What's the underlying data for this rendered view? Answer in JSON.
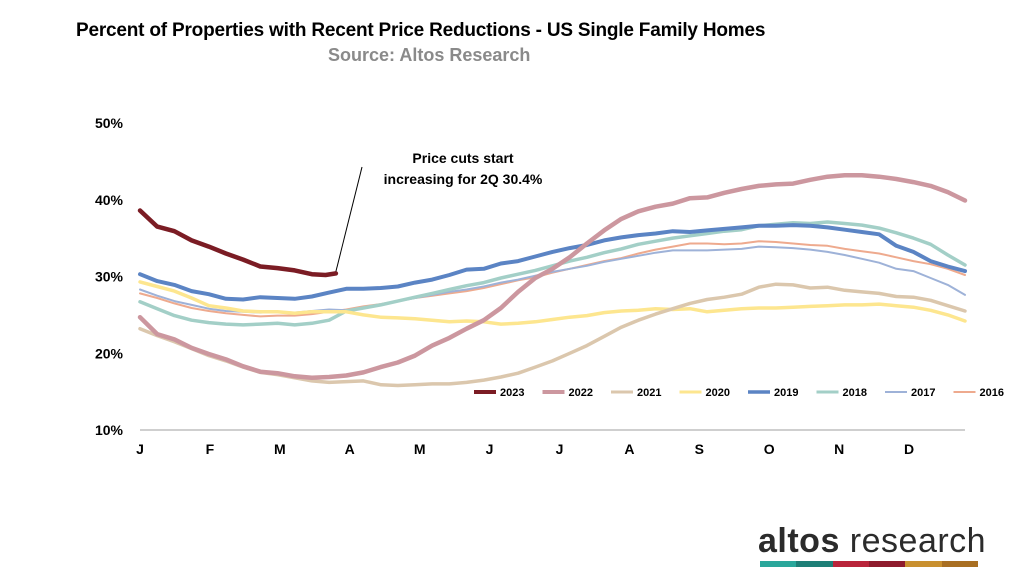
{
  "chart_data": {
    "type": "line",
    "title": "Percent of Properties with Recent Price Reductions - US Single Family Homes",
    "subtitle": "Source: Altos Research",
    "xlabel": "",
    "ylabel": "",
    "ylim": [
      10,
      50
    ],
    "xlim": [
      0,
      12
    ],
    "y_ticks": [
      "10%",
      "20%",
      "30%",
      "40%",
      "50%"
    ],
    "y_tick_values": [
      10,
      20,
      30,
      40,
      50
    ],
    "x_ticks": [
      "J",
      "F",
      "M",
      "A",
      "M",
      "J",
      "J",
      "A",
      "S",
      "O",
      "N",
      "D"
    ],
    "annotation": {
      "lines": [
        "Price cuts start",
        "increasing for 2Q 30.4%"
      ],
      "point": [
        2.85,
        30.4
      ]
    },
    "series": [
      {
        "name": "2023",
        "color": "#7b1c24",
        "width": 4.5,
        "x": [
          0,
          0.25,
          0.5,
          0.75,
          1,
          1.25,
          1.5,
          1.75,
          2,
          2.25,
          2.5,
          2.7,
          2.85
        ],
        "y": [
          38.6,
          36.5,
          35.9,
          34.7,
          33.9,
          33.0,
          32.2,
          31.3,
          31.1,
          30.8,
          30.3,
          30.2,
          30.4
        ]
      },
      {
        "name": "2022",
        "color": "#cc979f",
        "width": 4.5,
        "x": [
          0,
          0.25,
          0.5,
          0.75,
          1,
          1.25,
          1.5,
          1.75,
          2,
          2.25,
          2.5,
          2.75,
          3,
          3.25,
          3.5,
          3.75,
          4,
          4.25,
          4.5,
          4.75,
          5,
          5.25,
          5.5,
          5.75,
          6,
          6.25,
          6.5,
          6.75,
          7,
          7.25,
          7.5,
          7.75,
          8,
          8.25,
          8.5,
          8.75,
          9,
          9.25,
          9.5,
          9.75,
          10,
          10.25,
          10.5,
          10.75,
          11,
          11.25,
          11.5,
          11.75,
          12
        ],
        "y": [
          24.7,
          22.5,
          21.8,
          20.7,
          19.9,
          19.2,
          18.3,
          17.6,
          17.4,
          17.0,
          16.8,
          16.9,
          17.1,
          17.5,
          18.2,
          18.8,
          19.7,
          21.0,
          22.0,
          23.2,
          24.3,
          25.9,
          28.0,
          29.8,
          31.0,
          32.5,
          34.3,
          36.0,
          37.5,
          38.5,
          39.1,
          39.5,
          40.2,
          40.3,
          40.9,
          41.4,
          41.8,
          42.0,
          42.1,
          42.6,
          43.0,
          43.2,
          43.2,
          43.0,
          42.7,
          42.3,
          41.8,
          41.0,
          39.9
        ]
      },
      {
        "name": "2021",
        "color": "#dbc7ad",
        "width": 3.5,
        "x": [
          0,
          0.25,
          0.5,
          0.75,
          1,
          1.25,
          1.5,
          1.75,
          2,
          2.25,
          2.5,
          2.75,
          3,
          3.25,
          3.5,
          3.75,
          4,
          4.25,
          4.5,
          4.75,
          5,
          5.25,
          5.5,
          5.75,
          6,
          6.25,
          6.5,
          6.75,
          7,
          7.25,
          7.5,
          7.75,
          8,
          8.25,
          8.5,
          8.75,
          9,
          9.25,
          9.5,
          9.75,
          10,
          10.25,
          10.5,
          10.75,
          11,
          11.25,
          11.5,
          11.75,
          12
        ],
        "y": [
          23.2,
          22.3,
          21.5,
          20.6,
          19.7,
          19.0,
          18.2,
          17.5,
          17.2,
          16.8,
          16.4,
          16.2,
          16.3,
          16.4,
          15.9,
          15.8,
          15.9,
          16.0,
          16.0,
          16.2,
          16.5,
          16.9,
          17.4,
          18.2,
          19.0,
          20.0,
          21.0,
          22.2,
          23.4,
          24.3,
          25.1,
          25.8,
          26.5,
          27.0,
          27.3,
          27.7,
          28.6,
          29.0,
          28.9,
          28.5,
          28.6,
          28.2,
          28.0,
          27.8,
          27.4,
          27.3,
          26.9,
          26.2,
          25.5
        ]
      },
      {
        "name": "2020",
        "color": "#fde68f",
        "width": 3.5,
        "x": [
          0,
          0.25,
          0.5,
          0.75,
          1,
          1.25,
          1.5,
          1.75,
          2,
          2.25,
          2.5,
          2.75,
          3,
          3.25,
          3.5,
          3.75,
          4,
          4.25,
          4.5,
          4.75,
          5,
          5.25,
          5.5,
          5.75,
          6,
          6.25,
          6.5,
          6.75,
          7,
          7.25,
          7.5,
          7.75,
          8,
          8.25,
          8.5,
          8.75,
          9,
          9.25,
          9.5,
          9.75,
          10,
          10.25,
          10.5,
          10.75,
          11,
          11.25,
          11.5,
          11.75,
          12
        ],
        "y": [
          29.3,
          28.7,
          28.1,
          27.2,
          26.2,
          25.9,
          25.5,
          25.4,
          25.4,
          25.2,
          25.4,
          25.4,
          25.4,
          25.0,
          24.7,
          24.6,
          24.5,
          24.3,
          24.1,
          24.2,
          24.1,
          23.8,
          23.9,
          24.1,
          24.4,
          24.7,
          24.9,
          25.3,
          25.5,
          25.6,
          25.8,
          25.7,
          25.8,
          25.4,
          25.6,
          25.8,
          25.9,
          25.9,
          26.0,
          26.1,
          26.2,
          26.3,
          26.3,
          26.4,
          26.2,
          26.0,
          25.6,
          25.0,
          24.2
        ]
      },
      {
        "name": "2019",
        "color": "#5b84c4",
        "width": 4,
        "x": [
          0,
          0.25,
          0.5,
          0.75,
          1,
          1.25,
          1.5,
          1.75,
          2,
          2.25,
          2.5,
          2.75,
          3,
          3.25,
          3.5,
          3.75,
          4,
          4.25,
          4.5,
          4.75,
          5,
          5.25,
          5.5,
          5.75,
          6,
          6.25,
          6.5,
          6.75,
          7,
          7.25,
          7.5,
          7.75,
          8,
          8.25,
          8.5,
          8.75,
          9,
          9.25,
          9.5,
          9.75,
          10,
          10.25,
          10.5,
          10.75,
          11,
          11.25,
          11.5,
          11.75,
          12
        ],
        "y": [
          30.3,
          29.4,
          28.9,
          28.1,
          27.7,
          27.1,
          27.0,
          27.3,
          27.2,
          27.1,
          27.4,
          27.9,
          28.4,
          28.4,
          28.5,
          28.7,
          29.2,
          29.6,
          30.2,
          30.9,
          31.0,
          31.7,
          32.0,
          32.6,
          33.2,
          33.7,
          34.1,
          34.7,
          35.1,
          35.4,
          35.6,
          35.9,
          35.8,
          36.0,
          36.2,
          36.4,
          36.6,
          36.6,
          36.7,
          36.6,
          36.4,
          36.1,
          35.8,
          35.5,
          34.0,
          33.2,
          32.0,
          31.3,
          30.7
        ]
      },
      {
        "name": "2018",
        "color": "#a3cfc7",
        "width": 3.5,
        "x": [
          0,
          0.25,
          0.5,
          0.75,
          1,
          1.25,
          1.5,
          1.75,
          2,
          2.25,
          2.5,
          2.75,
          3,
          3.25,
          3.5,
          3.75,
          4,
          4.25,
          4.5,
          4.75,
          5,
          5.25,
          5.5,
          5.75,
          6,
          6.25,
          6.5,
          6.75,
          7,
          7.25,
          7.5,
          7.75,
          8,
          8.25,
          8.5,
          8.75,
          9,
          9.25,
          9.5,
          9.75,
          10,
          10.25,
          10.5,
          10.75,
          11,
          11.25,
          11.5,
          11.75,
          12
        ],
        "y": [
          26.7,
          25.8,
          24.9,
          24.3,
          24.0,
          23.8,
          23.7,
          23.8,
          23.9,
          23.7,
          23.9,
          24.3,
          25.5,
          25.9,
          26.3,
          26.8,
          27.3,
          27.8,
          28.3,
          28.8,
          29.2,
          29.8,
          30.3,
          30.8,
          31.4,
          32.0,
          32.5,
          33.1,
          33.6,
          34.2,
          34.6,
          35.0,
          35.3,
          35.6,
          35.9,
          36.1,
          36.6,
          36.8,
          37.0,
          36.9,
          37.1,
          36.9,
          36.7,
          36.3,
          35.7,
          35.0,
          34.2,
          32.8,
          31.5
        ]
      },
      {
        "name": "2017",
        "color": "#9eb2d8",
        "width": 2,
        "x": [
          0,
          0.25,
          0.5,
          0.75,
          1,
          1.25,
          1.5,
          1.75,
          2,
          2.25,
          2.5,
          2.75,
          3,
          3.25,
          3.5,
          3.75,
          4,
          4.25,
          4.5,
          4.75,
          5,
          5.25,
          5.5,
          5.75,
          6,
          6.25,
          6.5,
          6.75,
          7,
          7.25,
          7.5,
          7.75,
          8,
          8.25,
          8.5,
          8.75,
          9,
          9.25,
          9.5,
          9.75,
          10,
          10.25,
          10.5,
          10.75,
          11,
          11.25,
          11.5,
          11.75,
          12
        ],
        "y": [
          28.3,
          27.5,
          26.8,
          26.3,
          25.8,
          25.5,
          25.4,
          25.3,
          25.4,
          25.3,
          25.5,
          25.7,
          25.6,
          25.9,
          26.3,
          26.8,
          27.2,
          27.6,
          28.0,
          28.3,
          28.7,
          29.2,
          29.6,
          30.1,
          30.6,
          31.0,
          31.4,
          31.9,
          32.3,
          32.7,
          33.1,
          33.4,
          33.4,
          33.4,
          33.5,
          33.6,
          33.9,
          33.8,
          33.7,
          33.5,
          33.2,
          32.8,
          32.3,
          31.8,
          31.0,
          30.7,
          29.8,
          28.9,
          27.6
        ]
      },
      {
        "name": "2016",
        "color": "#eeaa8e",
        "width": 2,
        "x": [
          0,
          0.25,
          0.5,
          0.75,
          1,
          1.25,
          1.5,
          1.75,
          2,
          2.25,
          2.5,
          2.75,
          3,
          3.25,
          3.5,
          3.75,
          4,
          4.25,
          4.5,
          4.75,
          5,
          5.25,
          5.5,
          5.75,
          6,
          6.25,
          6.5,
          6.75,
          7,
          7.25,
          7.5,
          7.75,
          8,
          8.25,
          8.5,
          8.75,
          9,
          9.25,
          9.5,
          9.75,
          10,
          10.25,
          10.5,
          10.75,
          11,
          11.25,
          11.5,
          11.75,
          12
        ],
        "y": [
          27.8,
          27.2,
          26.5,
          25.9,
          25.5,
          25.2,
          25.0,
          24.8,
          24.9,
          24.9,
          25.1,
          25.4,
          25.7,
          26.1,
          26.4,
          26.8,
          27.2,
          27.5,
          27.8,
          28.1,
          28.5,
          29.0,
          29.5,
          29.9,
          30.5,
          31.0,
          31.5,
          32.0,
          32.4,
          33.0,
          33.5,
          33.9,
          34.3,
          34.3,
          34.2,
          34.3,
          34.6,
          34.5,
          34.3,
          34.1,
          34.0,
          33.6,
          33.3,
          33.0,
          32.5,
          32.0,
          31.6,
          31.0,
          30.2
        ]
      }
    ]
  },
  "logo": {
    "word1": "altos",
    "word2": " research",
    "bar_colors": [
      "#2aa79b",
      "#1e7f77",
      "#b9243a",
      "#8e1b2c",
      "#c9902f",
      "#a96f22"
    ]
  }
}
